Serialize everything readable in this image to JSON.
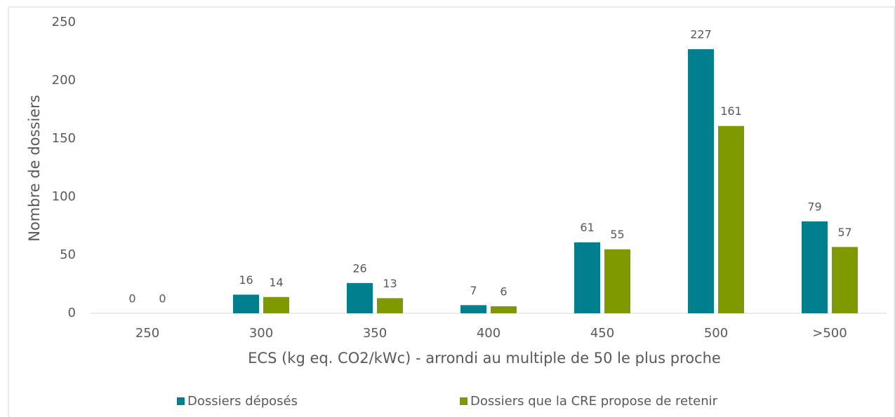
{
  "chart_data": {
    "type": "bar",
    "xlabel": "ECS (kg eq. CO2/kWc) - arrondi au multiple de 50 le plus proche",
    "ylabel": "Nombre de dossiers",
    "categories": [
      "250",
      "300",
      "350",
      "400",
      "450",
      "500",
      ">500"
    ],
    "series": [
      {
        "name": "Dossiers déposés",
        "color": "#017f8f",
        "values": [
          0,
          16,
          26,
          7,
          61,
          227,
          79
        ]
      },
      {
        "name": "Dossiers que la CRE propose de retenir",
        "color": "#7f9a00",
        "values": [
          0,
          14,
          13,
          6,
          55,
          161,
          57
        ]
      }
    ],
    "ylim": [
      0,
      250
    ],
    "yticks": [
      0,
      50,
      100,
      150,
      200,
      250
    ],
    "grid": false,
    "legend": "bottom"
  }
}
